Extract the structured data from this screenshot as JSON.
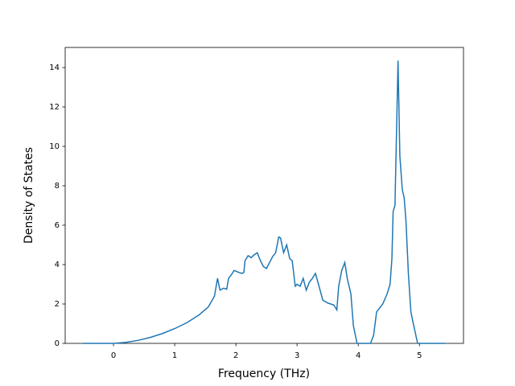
{
  "chart_data": {
    "type": "line",
    "xlabel": "Frequency (THz)",
    "ylabel": "Density of States",
    "xlim": [
      -0.79,
      5.72
    ],
    "ylim": [
      0,
      15.02
    ],
    "xticks": [
      0,
      1,
      2,
      3,
      4,
      5
    ],
    "yticks": [
      0,
      2,
      4,
      6,
      8,
      10,
      12,
      14
    ],
    "x": [
      -0.5,
      0,
      0.2,
      0.4,
      0.6,
      0.8,
      1.0,
      1.2,
      1.4,
      1.55,
      1.65,
      1.7,
      1.74,
      1.8,
      1.85,
      1.88,
      1.93,
      1.97,
      2.05,
      2.1,
      2.13,
      2.15,
      2.2,
      2.25,
      2.3,
      2.35,
      2.4,
      2.45,
      2.5,
      2.55,
      2.6,
      2.65,
      2.7,
      2.73,
      2.78,
      2.83,
      2.88,
      2.92,
      2.97,
      3.0,
      3.05,
      3.1,
      3.15,
      3.2,
      3.25,
      3.3,
      3.35,
      3.42,
      3.5,
      3.6,
      3.65,
      3.68,
      3.73,
      3.78,
      3.82,
      3.88,
      3.92,
      3.98,
      4.2,
      4.25,
      4.3,
      4.4,
      4.47,
      4.52,
      4.55,
      4.57,
      4.6,
      4.65,
      4.68,
      4.72,
      4.75,
      4.78,
      4.82,
      4.86,
      4.9,
      4.97,
      5.42
    ],
    "series": [
      {
        "color": "#1f77b4",
        "values": [
          0,
          0,
          0.05,
          0.15,
          0.3,
          0.5,
          0.75,
          1.05,
          1.45,
          1.85,
          2.4,
          3.3,
          2.7,
          2.8,
          2.75,
          3.3,
          3.5,
          3.7,
          3.6,
          3.55,
          3.6,
          4.2,
          4.45,
          4.35,
          4.5,
          4.6,
          4.2,
          3.9,
          3.8,
          4.1,
          4.4,
          4.6,
          5.4,
          5.35,
          4.6,
          5.0,
          4.3,
          4.2,
          2.9,
          3.0,
          2.9,
          3.3,
          2.7,
          3.1,
          3.3,
          3.55,
          3.0,
          2.2,
          2.05,
          1.95,
          1.7,
          2.9,
          3.7,
          4.1,
          3.3,
          2.5,
          0.9,
          0.0,
          0.0,
          0.4,
          1.6,
          2.0,
          2.5,
          3.0,
          4.3,
          6.7,
          7.0,
          14.35,
          9.5,
          7.8,
          7.4,
          6.2,
          3.5,
          1.6,
          1.0,
          0.0,
          0
        ]
      }
    ]
  }
}
